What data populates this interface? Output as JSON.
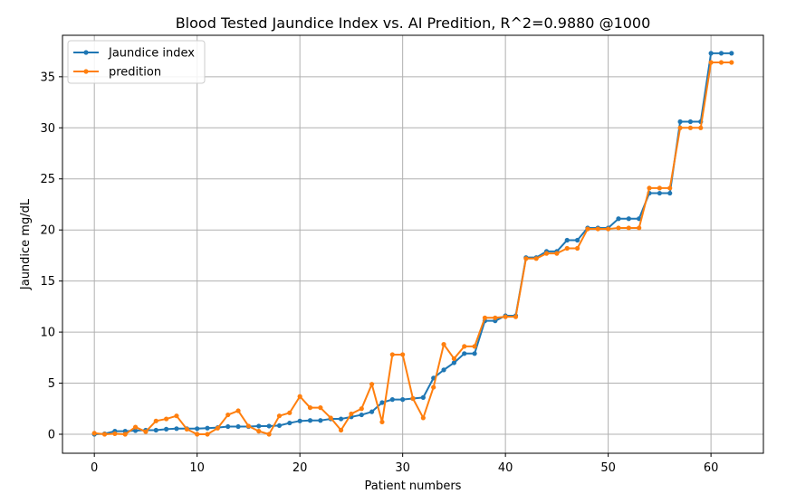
{
  "chart_data": {
    "type": "line",
    "title": "Blood Tested Jaundice Index vs. AI Predition, R^2=0.9880 @1000",
    "xlabel": "Patient numbers",
    "ylabel": "Jaundice mg/dL",
    "xlim": [
      -3.1,
      65.1
    ],
    "ylim": [
      -1.86,
      39.06
    ],
    "xticks": [
      0,
      10,
      20,
      30,
      40,
      50,
      60
    ],
    "yticks": [
      0,
      5,
      10,
      15,
      20,
      25,
      30,
      35
    ],
    "grid": true,
    "legend_position": "top-left",
    "x": [
      0,
      1,
      2,
      3,
      4,
      5,
      6,
      7,
      8,
      9,
      10,
      11,
      12,
      13,
      14,
      15,
      16,
      17,
      18,
      19,
      20,
      21,
      22,
      23,
      24,
      25,
      26,
      27,
      28,
      29,
      30,
      31,
      32,
      33,
      34,
      35,
      36,
      37,
      38,
      39,
      40,
      41,
      42,
      43,
      44,
      45,
      46,
      47,
      48,
      49,
      50,
      51,
      52,
      53,
      54,
      55,
      56,
      57,
      58,
      59,
      60,
      61,
      62
    ],
    "series": [
      {
        "name": "Jaundice index",
        "color": "#1f77b4",
        "values": [
          0.0,
          0.05,
          0.3,
          0.3,
          0.35,
          0.4,
          0.4,
          0.5,
          0.55,
          0.55,
          0.55,
          0.6,
          0.65,
          0.75,
          0.75,
          0.75,
          0.8,
          0.8,
          0.85,
          1.1,
          1.3,
          1.35,
          1.35,
          1.5,
          1.5,
          1.7,
          1.9,
          2.2,
          3.1,
          3.4,
          3.4,
          3.5,
          3.6,
          5.5,
          6.3,
          7.0,
          7.9,
          7.9,
          11.1,
          11.1,
          11.6,
          11.6,
          17.3,
          17.3,
          17.9,
          17.9,
          19.0,
          19.0,
          20.2,
          20.2,
          20.2,
          21.1,
          21.1,
          21.1,
          23.6,
          23.6,
          23.6,
          30.6,
          30.6,
          30.6,
          37.3,
          37.3,
          37.3
        ]
      },
      {
        "name": "predition",
        "color": "#ff7f0e",
        "values": [
          0.1,
          0.0,
          0.05,
          0.0,
          0.7,
          0.25,
          1.3,
          1.5,
          1.8,
          0.5,
          0.0,
          0.0,
          0.6,
          1.9,
          2.3,
          0.8,
          0.3,
          0.0,
          1.8,
          2.1,
          3.7,
          2.6,
          2.6,
          1.6,
          0.4,
          2.0,
          2.5,
          4.9,
          1.2,
          7.8,
          7.8,
          3.5,
          1.6,
          4.6,
          8.8,
          7.4,
          8.6,
          8.6,
          11.4,
          11.4,
          11.5,
          11.5,
          17.2,
          17.2,
          17.7,
          17.7,
          18.2,
          18.2,
          20.1,
          20.1,
          20.1,
          20.2,
          20.2,
          20.2,
          24.1,
          24.1,
          24.1,
          30.0,
          30.0,
          30.0,
          36.4,
          36.4,
          36.4
        ]
      }
    ]
  }
}
